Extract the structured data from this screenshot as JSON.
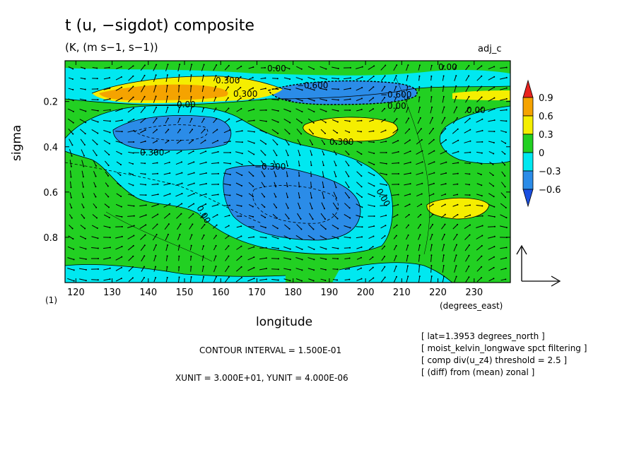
{
  "chart_data": {
    "type": "heatmap",
    "title": "t (u, −sigdot) composite",
    "subtitle": "(K, (m s−1, s−1))",
    "corner_label": "adj_c",
    "xlabel": "longitude",
    "xunit": "(degrees_east)",
    "ylabel": "sigma",
    "level_marker": "(1)",
    "xlim": [
      117,
      240
    ],
    "ylim": [
      0.02,
      1.0
    ],
    "y_inverted": true,
    "x_ticks": [
      120,
      130,
      140,
      150,
      160,
      170,
      180,
      190,
      200,
      210,
      220,
      230
    ],
    "y_ticks": [
      0.2,
      0.4,
      0.6,
      0.8
    ],
    "colorbar": {
      "levels": [
        "0.9",
        "0.6",
        "0.3",
        "0",
        "−0.3",
        "−0.6"
      ],
      "colors": [
        "#e8231e",
        "#f5a300",
        "#f5ee00",
        "#22d022",
        "#00e8f0",
        "#2b8ce8",
        "#1a4fe0"
      ]
    },
    "contour_labels": [
      "0.00",
      "0.300",
      "−0.300",
      "0.600",
      "−0.600"
    ],
    "contour_interval_text": "CONTOUR INTERVAL = 1.500E-01",
    "vector_scale_text": "XUNIT = 3.000E+01, YUNIT = 4.000E-06",
    "notes": [
      "[ lat=1.3953 degrees_north ]",
      "[ moist_kelvin_longwave spct filtering ]",
      "[ comp div(u_z4) threshold = 2.5 ]",
      "[ (diff) from (mean) zonal ]"
    ]
  }
}
